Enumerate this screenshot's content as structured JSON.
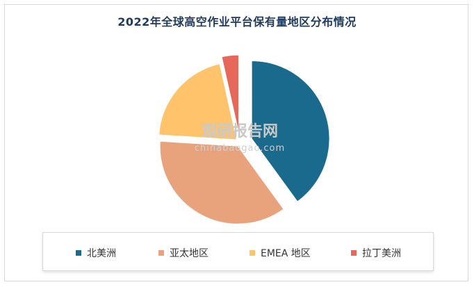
{
  "chart_data": {
    "type": "pie",
    "title": "2022年全球高空作业平台保有量地区分布情况",
    "categories": [
      "北美洲",
      "亚太地区",
      "EMEA 地区",
      "拉丁美洲"
    ],
    "values": [
      40,
      36,
      20.5,
      3.5
    ],
    "colors": [
      "#1a6a8d",
      "#e8a27c",
      "#ffc46b",
      "#e5685a"
    ],
    "legend_position": "bottom",
    "exploded": true,
    "start_angle_deg": 0,
    "direction": "clockwise"
  },
  "watermark": {
    "main": "观研报告网",
    "sub": "chinabaogao.com"
  }
}
